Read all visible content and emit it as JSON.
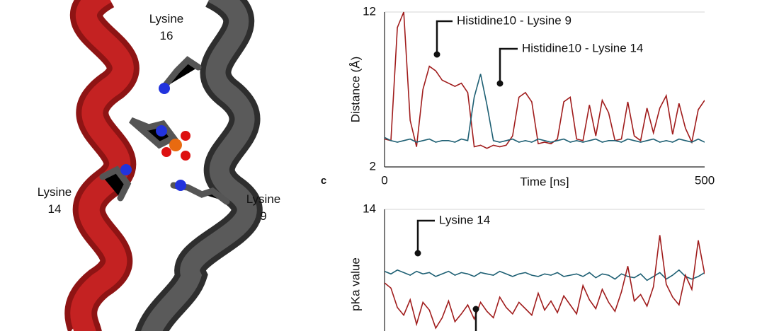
{
  "molecule_labels": [
    [
      "Lysine",
      "16"
    ],
    [
      "Lysine",
      "14"
    ],
    [
      "Lysine",
      "9"
    ]
  ],
  "panel_label": "c",
  "chart_data": [
    {
      "type": "line",
      "y_label": "Distance (Å)",
      "x_label": "Time [ns]",
      "xlim": [
        0,
        500
      ],
      "xticks": [
        0,
        500
      ],
      "ylim": [
        2,
        12
      ],
      "yticks": [
        2,
        12
      ],
      "grid": true,
      "x": [
        0,
        10,
        20,
        30,
        40,
        50,
        60,
        70,
        80,
        90,
        100,
        110,
        120,
        130,
        140,
        150,
        160,
        170,
        180,
        190,
        200,
        210,
        220,
        230,
        240,
        250,
        260,
        270,
        280,
        290,
        300,
        310,
        320,
        330,
        340,
        350,
        360,
        370,
        380,
        390,
        400,
        410,
        420,
        430,
        440,
        450,
        460,
        470,
        480,
        490,
        500
      ],
      "series": [
        {
          "name": "Histidine10 - Lysine 9",
          "color": "#a01c1c",
          "values": [
            3.8,
            3.7,
            11,
            12,
            5,
            3.3,
            7,
            8.5,
            8.2,
            7.6,
            7.4,
            7.2,
            7.4,
            6.8,
            3.3,
            3.4,
            3.2,
            3.4,
            3.3,
            3.4,
            4,
            6.5,
            6.8,
            6.2,
            3.5,
            3.6,
            3.5,
            3.8,
            6.2,
            6.5,
            3.8,
            3.7,
            6.0,
            4,
            6.3,
            5.5,
            3.7,
            3.8,
            6.2,
            4,
            3.7,
            5.8,
            4.2,
            5.8,
            6.6,
            4.1,
            6.1,
            4.5,
            3.6,
            5.7,
            6.3
          ]
        },
        {
          "name": "Histidine10 - Lysine 14",
          "color": "#1d5f73",
          "values": [
            3.9,
            3.7,
            3.6,
            3.7,
            3.8,
            3.6,
            3.7,
            3.8,
            3.6,
            3.7,
            3.7,
            3.6,
            3.8,
            3.7,
            6.5,
            8.0,
            6.0,
            3.7,
            3.6,
            3.7,
            3.8,
            3.6,
            3.7,
            3.6,
            3.8,
            3.7,
            3.6,
            3.7,
            3.8,
            3.6,
            3.7,
            3.6,
            3.7,
            3.8,
            3.6,
            3.7,
            3.7,
            3.6,
            3.8,
            3.7,
            3.6,
            3.7,
            3.8,
            3.6,
            3.7,
            3.6,
            3.8,
            3.7,
            3.6,
            3.8,
            3.6
          ]
        }
      ],
      "annotations": [
        "Histidine10 - Lysine 9",
        "Histidine10 - Lysine 14"
      ]
    },
    {
      "type": "line",
      "y_label": "pKa value",
      "xlim": [
        0,
        500
      ],
      "ylim": [
        2,
        14
      ],
      "yticks": [
        14
      ],
      "grid": true,
      "x": [
        0,
        10,
        20,
        30,
        40,
        50,
        60,
        70,
        80,
        90,
        100,
        110,
        120,
        130,
        140,
        150,
        160,
        170,
        180,
        190,
        200,
        210,
        220,
        230,
        240,
        250,
        260,
        270,
        280,
        290,
        300,
        310,
        320,
        330,
        340,
        350,
        360,
        370,
        380,
        390,
        400,
        410,
        420,
        430,
        440,
        450,
        460,
        470,
        480,
        490,
        500
      ],
      "series": [
        {
          "name": "Lysine 14",
          "color": "#1d5f73",
          "values": [
            9.2,
            9.0,
            9.3,
            9.1,
            8.9,
            9.2,
            9.0,
            9.1,
            8.8,
            9.0,
            9.2,
            8.9,
            9.1,
            9.0,
            8.8,
            9.1,
            9.0,
            8.9,
            9.2,
            9.0,
            8.8,
            9.0,
            9.1,
            8.9,
            8.8,
            9.0,
            8.9,
            9.1,
            8.8,
            8.9,
            9.0,
            8.8,
            9.1,
            8.7,
            9.0,
            8.9,
            8.6,
            9.0,
            8.8,
            8.7,
            9.0,
            8.5,
            8.8,
            9.1,
            8.6,
            8.9,
            9.3,
            8.8,
            8.6,
            8.8,
            9.1
          ]
        },
        {
          "color": "#a01c1c",
          "values": [
            8.3,
            7.9,
            6.4,
            5.8,
            7.0,
            5.1,
            6.8,
            6.2,
            4.8,
            5.6,
            6.9,
            5.3,
            5.9,
            6.6,
            5.5,
            6.8,
            6.1,
            5.6,
            7.2,
            6.4,
            5.9,
            6.8,
            6.3,
            5.8,
            7.5,
            6.2,
            6.9,
            6.0,
            7.3,
            6.6,
            5.9,
            8.1,
            7.0,
            6.3,
            7.8,
            6.8,
            6.1,
            7.6,
            9.6,
            6.9,
            7.4,
            6.5,
            8.0,
            12.0,
            8.2,
            7.2,
            6.6,
            8.9,
            7.8,
            11.6,
            9.0
          ]
        }
      ],
      "annotations": [
        "Lysine 14"
      ]
    }
  ]
}
